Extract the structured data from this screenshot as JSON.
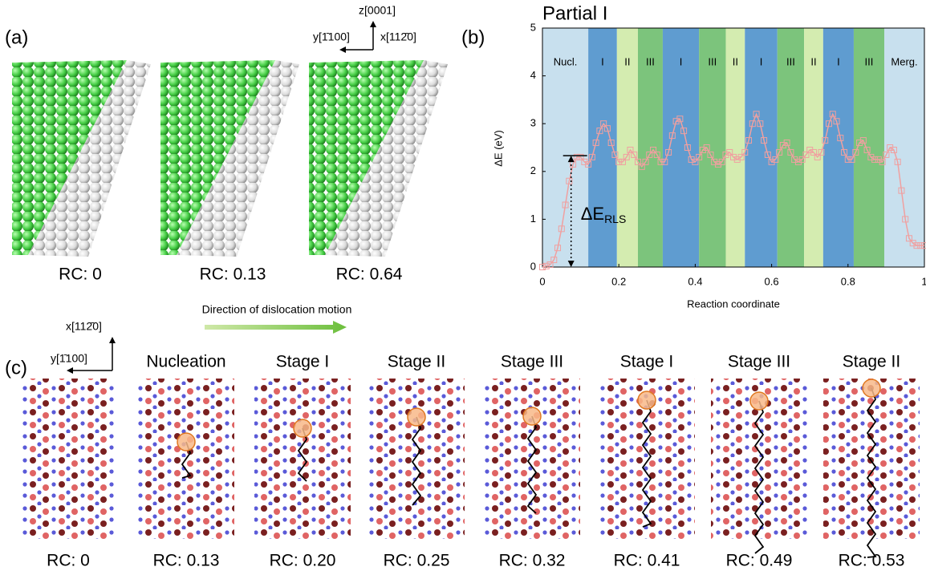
{
  "panel_a": {
    "label": "(a)",
    "axis_z": "z[0001]",
    "axis_y": "y[1̄100]",
    "axis_x": "x[112̄0]",
    "captions": [
      "RC: 0",
      "RC: 0.13",
      "RC: 0.64"
    ]
  },
  "chart_data": {
    "type": "line",
    "label": "(b)",
    "title": "Partial I",
    "xlabel": "Reaction coordinate",
    "ylabel": "ΔE (eV)",
    "xlim": [
      0,
      1
    ],
    "ylim": [
      0,
      5
    ],
    "xticks": [
      0,
      0.2,
      0.4,
      0.6,
      0.8,
      1
    ],
    "yticks": [
      0,
      1,
      2,
      3,
      4,
      5
    ],
    "regions": [
      {
        "label": "Nucl.",
        "start": 0,
        "end": 0.12,
        "color": "#c8e0ee"
      },
      {
        "label": "I",
        "start": 0.12,
        "end": 0.195,
        "color": "#5f9cd0"
      },
      {
        "label": "II",
        "start": 0.195,
        "end": 0.25,
        "color": "#d4ecb0"
      },
      {
        "label": "III",
        "start": 0.25,
        "end": 0.315,
        "color": "#7cc47c"
      },
      {
        "label": "I",
        "start": 0.315,
        "end": 0.41,
        "color": "#5f9cd0"
      },
      {
        "label": "III",
        "start": 0.41,
        "end": 0.48,
        "color": "#7cc47c"
      },
      {
        "label": "II",
        "start": 0.48,
        "end": 0.53,
        "color": "#d4ecb0"
      },
      {
        "label": "I",
        "start": 0.53,
        "end": 0.615,
        "color": "#5f9cd0"
      },
      {
        "label": "III",
        "start": 0.615,
        "end": 0.685,
        "color": "#7cc47c"
      },
      {
        "label": "II",
        "start": 0.685,
        "end": 0.735,
        "color": "#d4ecb0"
      },
      {
        "label": "I",
        "start": 0.735,
        "end": 0.815,
        "color": "#5f9cd0"
      },
      {
        "label": "III",
        "start": 0.815,
        "end": 0.895,
        "color": "#7cc47c"
      },
      {
        "label": "Merg.",
        "start": 0.895,
        "end": 1,
        "color": "#c8e0ee"
      }
    ],
    "annotation": {
      "text": "ΔE",
      "subscript": "RLS",
      "value": 2.33,
      "x": 0.075
    },
    "series": [
      {
        "color": "#f0a0a0",
        "x": [
          0,
          0.01,
          0.02,
          0.03,
          0.04,
          0.05,
          0.06,
          0.07,
          0.08,
          0.09,
          0.1,
          0.11,
          0.12,
          0.13,
          0.14,
          0.15,
          0.16,
          0.17,
          0.18,
          0.19,
          0.2,
          0.21,
          0.22,
          0.23,
          0.24,
          0.25,
          0.26,
          0.27,
          0.28,
          0.29,
          0.3,
          0.31,
          0.32,
          0.33,
          0.34,
          0.35,
          0.36,
          0.37,
          0.38,
          0.39,
          0.4,
          0.41,
          0.42,
          0.43,
          0.44,
          0.45,
          0.46,
          0.47,
          0.48,
          0.49,
          0.5,
          0.51,
          0.52,
          0.53,
          0.54,
          0.55,
          0.56,
          0.57,
          0.58,
          0.59,
          0.6,
          0.61,
          0.62,
          0.63,
          0.64,
          0.65,
          0.66,
          0.67,
          0.68,
          0.69,
          0.7,
          0.71,
          0.72,
          0.73,
          0.74,
          0.75,
          0.76,
          0.77,
          0.78,
          0.79,
          0.8,
          0.81,
          0.82,
          0.83,
          0.84,
          0.85,
          0.86,
          0.87,
          0.88,
          0.89,
          0.9,
          0.91,
          0.92,
          0.93,
          0.94,
          0.95,
          0.96,
          0.97,
          0.98,
          0.99,
          1
        ],
        "values": [
          0,
          0.02,
          0.05,
          0.15,
          0.4,
          0.8,
          1.3,
          1.8,
          2.15,
          2.3,
          2.3,
          2.2,
          2.15,
          2.3,
          2.6,
          2.85,
          3.0,
          2.9,
          2.6,
          2.35,
          2.2,
          2.2,
          2.3,
          2.45,
          2.35,
          2.2,
          2.1,
          2.2,
          2.35,
          2.45,
          2.35,
          2.2,
          2.2,
          2.4,
          2.75,
          3.05,
          3.1,
          2.85,
          2.5,
          2.25,
          2.2,
          2.3,
          2.45,
          2.5,
          2.35,
          2.2,
          2.15,
          2.2,
          2.35,
          2.4,
          2.3,
          2.25,
          2.3,
          2.4,
          2.65,
          3.0,
          3.2,
          3.0,
          2.65,
          2.35,
          2.2,
          2.25,
          2.4,
          2.55,
          2.6,
          2.4,
          2.25,
          2.2,
          2.25,
          2.35,
          2.45,
          2.4,
          2.3,
          2.4,
          2.65,
          3.0,
          3.2,
          3.05,
          2.7,
          2.4,
          2.25,
          2.25,
          2.4,
          2.6,
          2.65,
          2.45,
          2.3,
          2.25,
          2.25,
          2.2,
          2.35,
          2.5,
          2.45,
          2.2,
          1.6,
          1.0,
          0.6,
          0.5,
          0.45,
          0.45,
          0.45
        ]
      }
    ]
  },
  "panel_c": {
    "label": "(c)",
    "axis_x": "x[112̄0]",
    "axis_y": "y[1̄100]",
    "direction": "Direction of dislocation motion",
    "stages": [
      "Nucleation",
      "Stage I",
      "Stage II",
      "Stage III",
      "Stage I",
      "Stage III",
      "Stage II"
    ],
    "captions": [
      "RC: 0",
      "RC: 0.13",
      "RC: 0.20",
      "RC: 0.25",
      "RC: 0.32",
      "RC: 0.41",
      "RC: 0.49",
      "RC: 0.53"
    ]
  }
}
